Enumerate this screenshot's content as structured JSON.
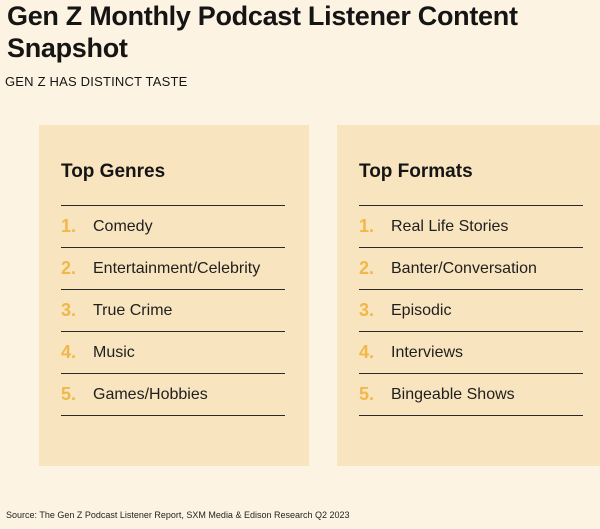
{
  "title": "Gen Z Monthly Podcast Listener Content Snapshot",
  "subtitle": "GEN Z HAS DISTINCT TASTE",
  "genres": {
    "heading": "Top Genres",
    "items": [
      {
        "rank": "1.",
        "label": "Comedy"
      },
      {
        "rank": "2.",
        "label": "Entertainment/Celebrity"
      },
      {
        "rank": "3.",
        "label": "True Crime"
      },
      {
        "rank": "4.",
        "label": "Music"
      },
      {
        "rank": "5.",
        "label": "Games/Hobbies"
      }
    ]
  },
  "formats": {
    "heading": "Top Formats",
    "items": [
      {
        "rank": "1.",
        "label": "Real Life Stories"
      },
      {
        "rank": "2.",
        "label": "Banter/Conversation"
      },
      {
        "rank": "3.",
        "label": "Episodic"
      },
      {
        "rank": "4.",
        "label": "Interviews"
      },
      {
        "rank": "5.",
        "label": "Bingeable Shows"
      }
    ]
  },
  "source": "Source: The Gen Z Podcast Listener Report, SXM Media & Edison Research Q2 2023",
  "colors": {
    "background": "#fdf3e2",
    "card": "#f8e4be",
    "rank_accent": "#f0b84a",
    "text": "#151515"
  }
}
